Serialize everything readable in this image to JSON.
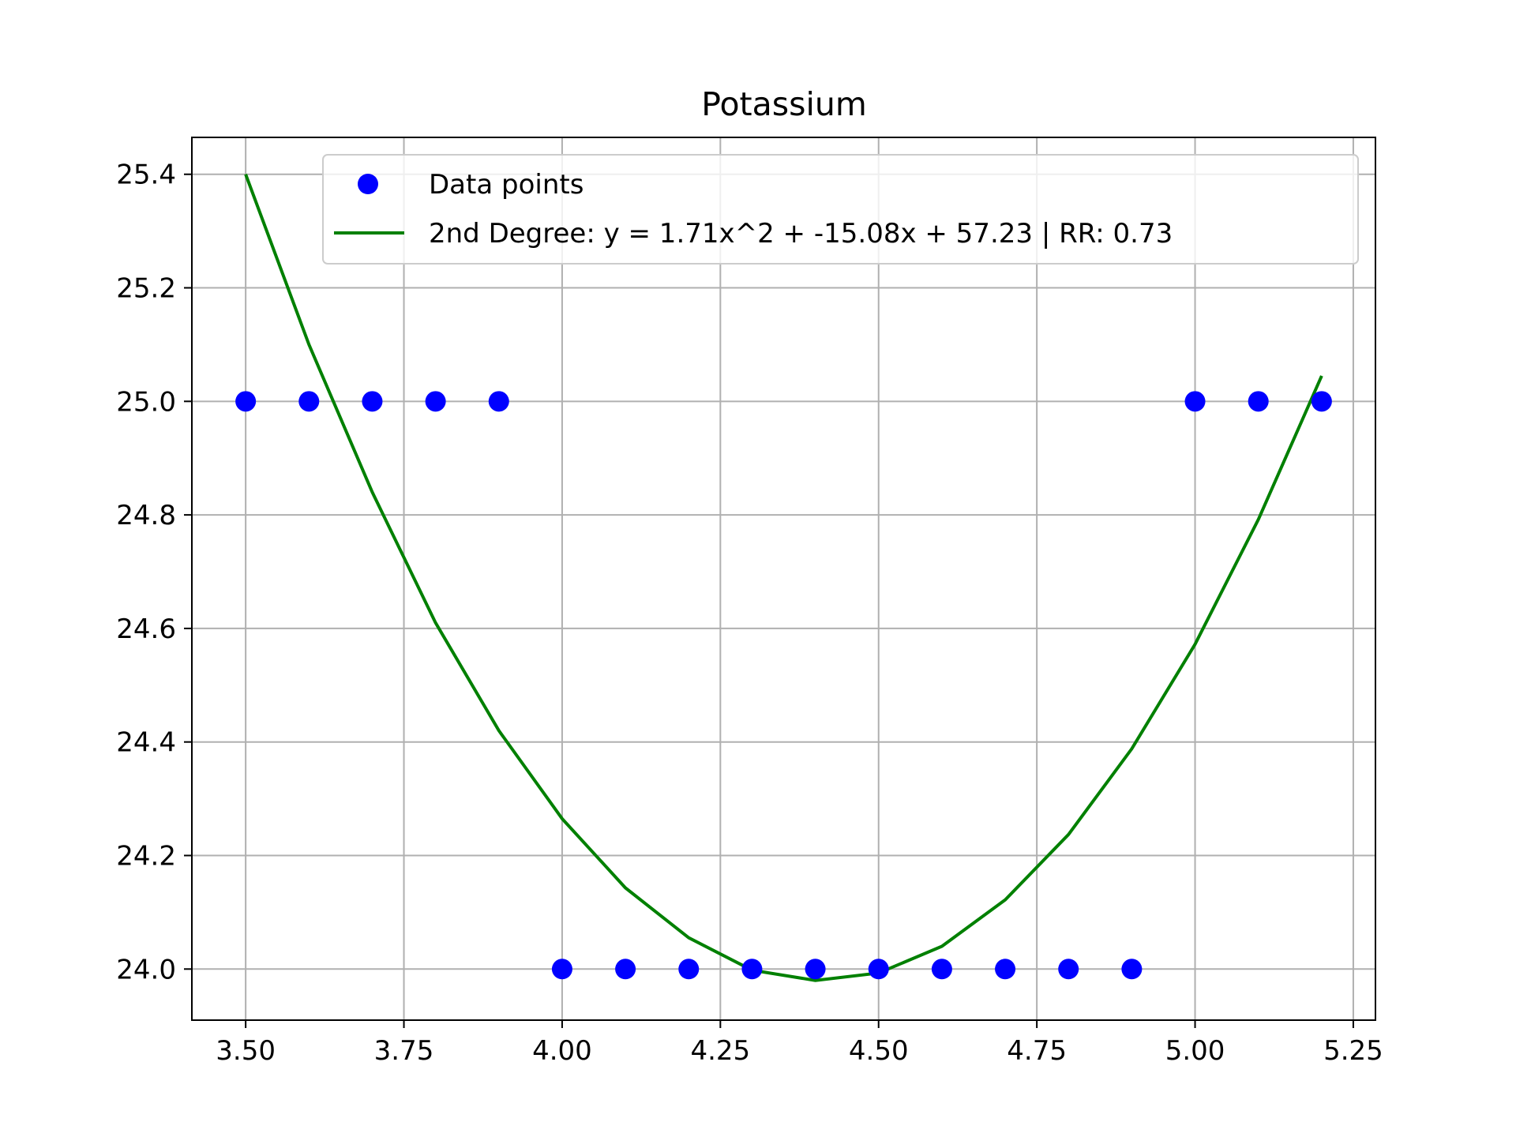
{
  "chart_data": {
    "type": "scatter",
    "title": "Potassium",
    "xlabel": "",
    "ylabel": "",
    "xlim": [
      3.415,
      5.285
    ],
    "ylim": [
      23.91,
      25.465
    ],
    "x_ticks": [
      3.5,
      3.75,
      4.0,
      4.25,
      4.5,
      4.75,
      5.0,
      5.25
    ],
    "x_tick_labels": [
      "3.50",
      "3.75",
      "4.00",
      "4.25",
      "4.50",
      "4.75",
      "5.00",
      "5.25"
    ],
    "y_ticks": [
      24.0,
      24.2,
      24.4,
      24.6,
      24.8,
      25.0,
      25.2,
      25.4
    ],
    "y_tick_labels": [
      "24.0",
      "24.2",
      "24.4",
      "24.6",
      "24.8",
      "25.0",
      "25.2",
      "25.4"
    ],
    "grid": true,
    "legend_position": "top-right",
    "series": [
      {
        "name": "Data points",
        "kind": "scatter",
        "color": "#0000ff",
        "x": [
          3.5,
          3.6,
          3.7,
          3.8,
          3.9,
          4.0,
          4.1,
          4.2,
          4.3,
          4.4,
          4.5,
          4.6,
          4.7,
          4.8,
          4.9,
          5.0,
          5.1,
          5.2
        ],
        "y": [
          25.0,
          25.0,
          25.0,
          25.0,
          25.0,
          24.0,
          24.0,
          24.0,
          24.0,
          24.0,
          24.0,
          24.0,
          24.0,
          24.0,
          24.0,
          25.0,
          25.0,
          25.0
        ]
      },
      {
        "name": "2nd Degree: y = 1.71x^2 + -15.08x + 57.23 | RR: 0.73",
        "kind": "line",
        "color": "#008000",
        "x": [
          3.5,
          3.6,
          3.7,
          3.8,
          3.9,
          4.0,
          4.1,
          4.2,
          4.3,
          4.4,
          4.5,
          4.6,
          4.7,
          4.8,
          4.9,
          5.0,
          5.1,
          5.2
        ],
        "y": [
          25.4,
          25.1,
          24.84,
          24.61,
          24.42,
          24.265,
          24.143,
          24.055,
          23.998,
          23.98,
          23.993,
          24.04,
          24.122,
          24.237,
          24.388,
          24.572,
          24.792,
          25.045
        ]
      }
    ]
  }
}
